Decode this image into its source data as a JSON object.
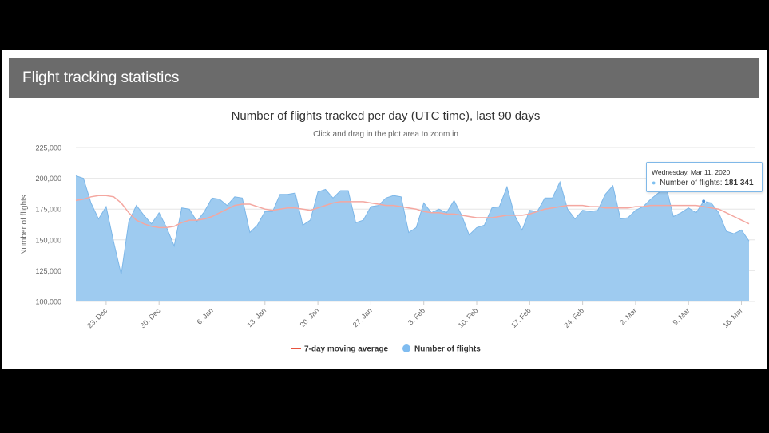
{
  "header": {
    "title": "Flight tracking statistics"
  },
  "tooltip": {
    "date": "Wednesday, Mar 11, 2020",
    "label": "Number of flights:",
    "value": "181 341"
  },
  "colors": {
    "area_fill": "#9ecbf0",
    "area_stroke": "#7db7e8",
    "moving_average": "#f4a7a0",
    "header_bg": "#6b6b6b"
  },
  "chart_data": {
    "type": "area",
    "title": "Number of flights tracked per day (UTC time), last 90 days",
    "subtitle": "Click and drag in the plot area to zoom in",
    "ylabel": "Number of flights",
    "ylim": [
      100000,
      225000
    ],
    "yticks": [
      100000,
      125000,
      150000,
      175000,
      200000,
      225000
    ],
    "ytick_labels": [
      "100,000",
      "125,000",
      "150,000",
      "175,000",
      "200,000",
      "225,000"
    ],
    "xticks": [
      "2019-12-23",
      "2019-12-30",
      "2020-01-06",
      "2020-01-13",
      "2020-01-20",
      "2020-01-27",
      "2020-02-03",
      "2020-02-10",
      "2020-02-17",
      "2020-02-24",
      "2020-03-02",
      "2020-03-09",
      "2020-03-16"
    ],
    "xtick_labels": [
      "23. Dec",
      "30. Dec",
      "6. Jan",
      "13. Jan",
      "20. Jan",
      "27. Jan",
      "3. Feb",
      "10. Feb",
      "17. Feb",
      "24. Feb",
      "2. Mar",
      "9. Mar",
      "16. Mar"
    ],
    "x": [
      "2019-12-19",
      "2019-12-20",
      "2019-12-21",
      "2019-12-22",
      "2019-12-23",
      "2019-12-24",
      "2019-12-25",
      "2019-12-26",
      "2019-12-27",
      "2019-12-28",
      "2019-12-29",
      "2019-12-30",
      "2019-12-31",
      "2020-01-01",
      "2020-01-02",
      "2020-01-03",
      "2020-01-04",
      "2020-01-05",
      "2020-01-06",
      "2020-01-07",
      "2020-01-08",
      "2020-01-09",
      "2020-01-10",
      "2020-01-11",
      "2020-01-12",
      "2020-01-13",
      "2020-01-14",
      "2020-01-15",
      "2020-01-16",
      "2020-01-17",
      "2020-01-18",
      "2020-01-19",
      "2020-01-20",
      "2020-01-21",
      "2020-01-22",
      "2020-01-23",
      "2020-01-24",
      "2020-01-25",
      "2020-01-26",
      "2020-01-27",
      "2020-01-28",
      "2020-01-29",
      "2020-01-30",
      "2020-01-31",
      "2020-02-01",
      "2020-02-02",
      "2020-02-03",
      "2020-02-04",
      "2020-02-05",
      "2020-02-06",
      "2020-02-07",
      "2020-02-08",
      "2020-02-09",
      "2020-02-10",
      "2020-02-11",
      "2020-02-12",
      "2020-02-13",
      "2020-02-14",
      "2020-02-15",
      "2020-02-16",
      "2020-02-17",
      "2020-02-18",
      "2020-02-19",
      "2020-02-20",
      "2020-02-21",
      "2020-02-22",
      "2020-02-23",
      "2020-02-24",
      "2020-02-25",
      "2020-02-26",
      "2020-02-27",
      "2020-02-28",
      "2020-02-29",
      "2020-03-01",
      "2020-03-02",
      "2020-03-03",
      "2020-03-04",
      "2020-03-05",
      "2020-03-06",
      "2020-03-07",
      "2020-03-08",
      "2020-03-09",
      "2020-03-10",
      "2020-03-11",
      "2020-03-12",
      "2020-03-13",
      "2020-03-14",
      "2020-03-15",
      "2020-03-16",
      "2020-03-17"
    ],
    "series": [
      {
        "name": "Number of flights",
        "values": [
          202000,
          200000,
          180000,
          167000,
          177000,
          148000,
          122000,
          165000,
          178000,
          170000,
          163000,
          172000,
          160000,
          145000,
          176000,
          175000,
          165000,
          173000,
          184000,
          183000,
          178000,
          185000,
          184000,
          156000,
          162000,
          173000,
          173000,
          187000,
          187000,
          188000,
          162000,
          166000,
          189000,
          191000,
          184000,
          190000,
          190000,
          164000,
          166000,
          177000,
          178000,
          184000,
          186000,
          185000,
          156000,
          160000,
          180000,
          172000,
          175000,
          172000,
          182000,
          170000,
          154000,
          160000,
          162000,
          176000,
          177000,
          193000,
          170000,
          158000,
          174000,
          173000,
          184000,
          184000,
          197000,
          175000,
          167000,
          174000,
          173000,
          174000,
          187000,
          194000,
          167000,
          168000,
          174000,
          177000,
          183000,
          188000,
          194000,
          169000,
          172000,
          176000,
          172000,
          181341,
          180000,
          172000,
          157000,
          155000,
          158000,
          149000
        ]
      },
      {
        "name": "7-day moving average",
        "values": [
          182000,
          183000,
          185000,
          186000,
          186000,
          185000,
          180000,
          172000,
          166000,
          163000,
          161000,
          160000,
          160000,
          161000,
          164000,
          166000,
          166000,
          167000,
          169000,
          172000,
          175000,
          178000,
          179000,
          179000,
          177000,
          175000,
          174000,
          175000,
          176000,
          176000,
          175000,
          174000,
          176000,
          178000,
          180000,
          181000,
          181000,
          181000,
          181000,
          180000,
          179000,
          178000,
          178000,
          177000,
          176000,
          175000,
          173000,
          172000,
          172000,
          171000,
          171000,
          170000,
          169000,
          168000,
          168000,
          168000,
          169000,
          170000,
          170000,
          170000,
          171000,
          173000,
          175000,
          176000,
          177000,
          178000,
          178000,
          178000,
          177000,
          177000,
          176000,
          176000,
          176000,
          176000,
          177000,
          177000,
          178000,
          178000,
          178000,
          178000,
          178000,
          178000,
          178000,
          177000,
          176000,
          175000,
          172000,
          169000,
          166000,
          163000
        ]
      }
    ],
    "legend": [
      "7-day moving average",
      "Number of flights"
    ],
    "legend_position": "bottom-center",
    "grid": true
  }
}
